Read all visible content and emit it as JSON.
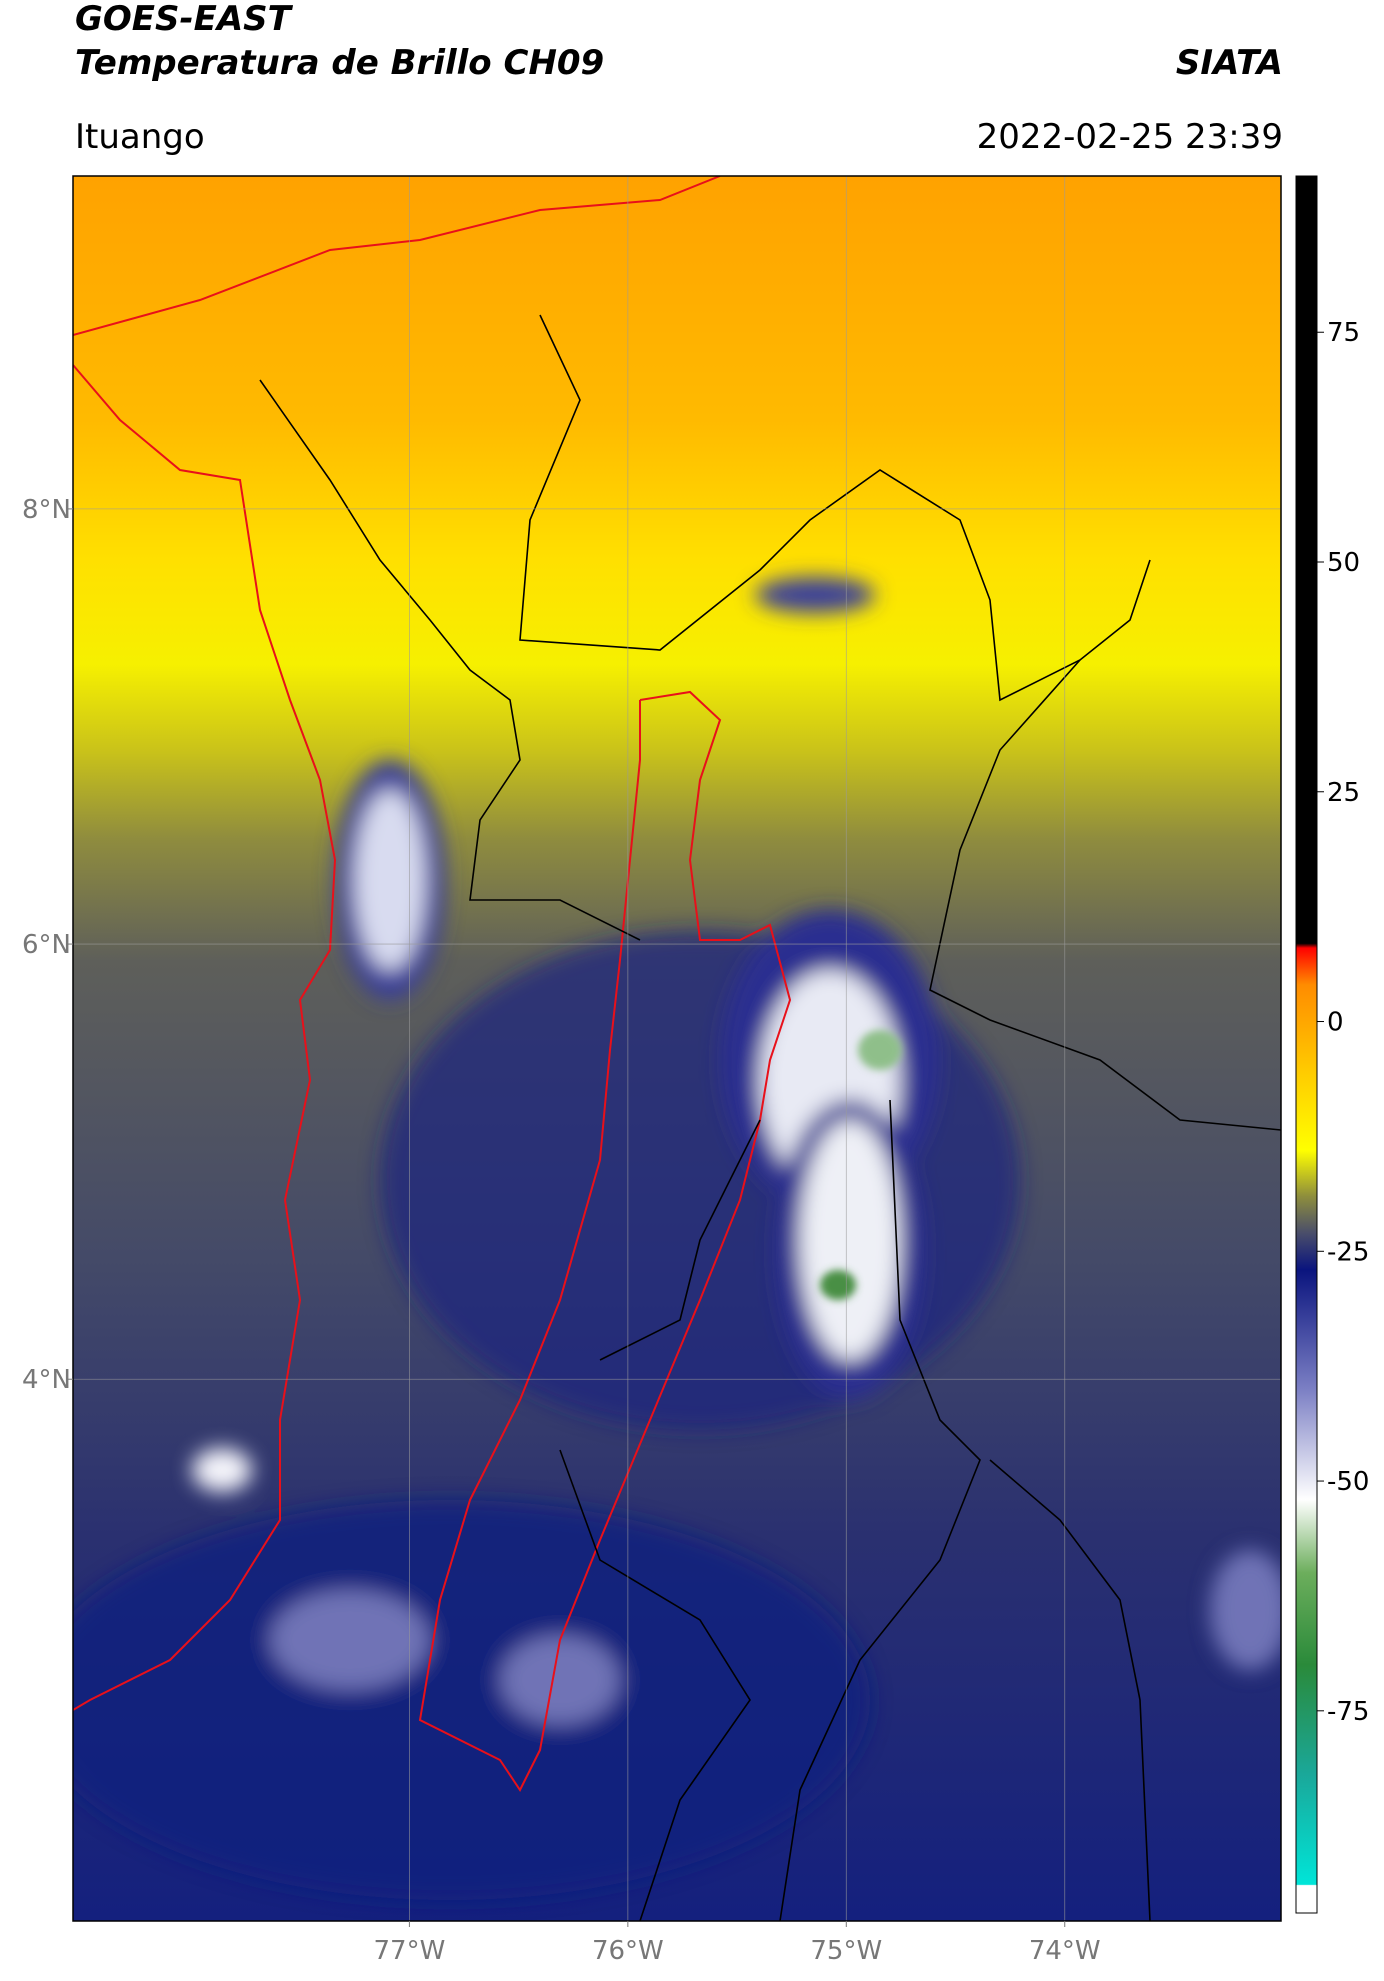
{
  "chart_data": {
    "type": "map",
    "title": "GOES-EAST",
    "subtitle": "Temperatura de Brillo CH09",
    "source": "SIATA",
    "location": "Ituango",
    "datetime": "2022-02-25 23:39",
    "xlim": [
      -78.54,
      -73.01
    ],
    "ylim": [
      1.51,
      9.53
    ],
    "xticks": [
      {
        "value": -77,
        "label": "77°W"
      },
      {
        "value": -76,
        "label": "76°W"
      },
      {
        "value": -75,
        "label": "75°W"
      },
      {
        "value": -74,
        "label": "74°W"
      }
    ],
    "yticks": [
      {
        "value": 8,
        "label": "8°N"
      },
      {
        "value": 6,
        "label": "6°N"
      },
      {
        "value": 4,
        "label": "4°N"
      }
    ],
    "grid": true,
    "colorbar": {
      "clim": [
        -97,
        92
      ],
      "ticks": [
        75,
        50,
        25,
        0,
        -25,
        -50,
        -75
      ],
      "stops": [
        {
          "value": -97,
          "color": "#ffffff"
        },
        {
          "value": -94,
          "color": "#ffffff"
        },
        {
          "value": -93.9,
          "color": "#00e5d8"
        },
        {
          "value": -82,
          "color": "#1aa89a"
        },
        {
          "value": -70,
          "color": "#2a8a3a"
        },
        {
          "value": -60,
          "color": "#6cae5c"
        },
        {
          "value": -52,
          "color": "#ffffff"
        },
        {
          "value": -40,
          "color": "#7b7fc4"
        },
        {
          "value": -27,
          "color": "#0a147e"
        },
        {
          "value": -23,
          "color": "#4a4e6a"
        },
        {
          "value": -19,
          "color": "#8e8e3c"
        },
        {
          "value": -14,
          "color": "#ffff00"
        },
        {
          "value": -5,
          "color": "#ffc800"
        },
        {
          "value": 4,
          "color": "#ff8c00"
        },
        {
          "value": 8,
          "color": "#ff0000"
        },
        {
          "value": 8.5,
          "color": "#000000"
        },
        {
          "value": 92,
          "color": "#000000"
        }
      ]
    }
  }
}
